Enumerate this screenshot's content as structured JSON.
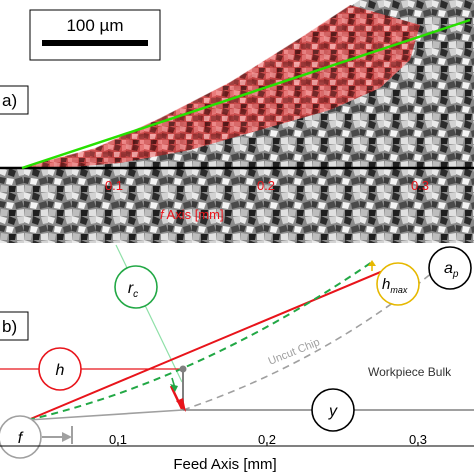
{
  "panel_a": {
    "label": "a)",
    "scale_bar_text": "100 µm",
    "axis_ticks": [
      "0.1",
      "0.2",
      "0.3"
    ],
    "axis_label_prefix": "f",
    "axis_label_suffix": " Axis [mm]",
    "colors": {
      "chip": "#d94848",
      "line_green": "#27e000",
      "axis_text": "#e8141b"
    }
  },
  "panel_b": {
    "label": "b)",
    "circle_labels": {
      "h": "h",
      "rc_base": "r",
      "rc_sub": "c",
      "hmax_base": "h",
      "hmax_sub": "max",
      "ap_base": "a",
      "ap_sub": "p",
      "y": "y",
      "f": "f"
    },
    "text_uncut_chip": "Uncut Chip",
    "text_workpiece": "Workpiece Bulk",
    "axis_ticks": [
      "0.1",
      "0.2",
      "0.3"
    ],
    "axis_label": "Feed Axis [mm]",
    "colors": {
      "red": "#e8141b",
      "green": "#22a845",
      "green_light": "#8fe0a8",
      "yellow": "#e6b800",
      "gray": "#a0a0a0"
    }
  }
}
